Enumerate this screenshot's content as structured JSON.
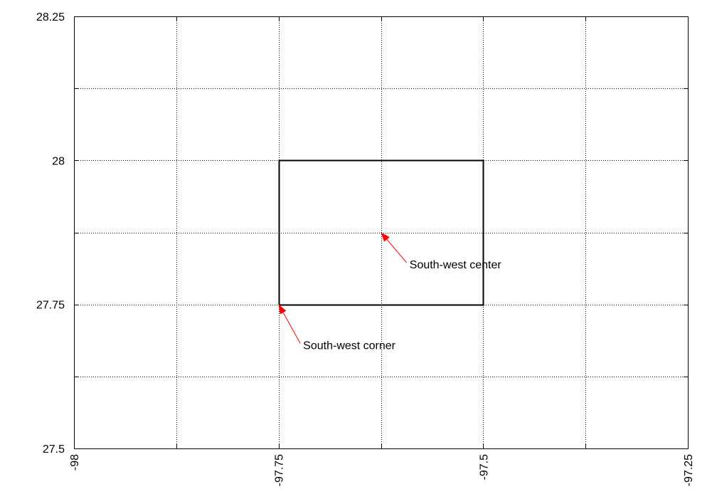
{
  "chart_data": {
    "type": "line",
    "title": "",
    "xlabel": "",
    "ylabel": "",
    "xlim": [
      -98,
      -97.25
    ],
    "ylim": [
      27.5,
      28.25
    ],
    "grid": true,
    "x_ticks": [
      -98,
      -97.875,
      -97.75,
      -97.625,
      -97.5,
      -97.375,
      -97.25
    ],
    "y_ticks": [
      27.5,
      27.625,
      27.75,
      27.875,
      28,
      28.125,
      28.25
    ],
    "x_tick_labels": [
      "-98",
      "-97.75",
      "-97.5",
      "-97.25"
    ],
    "y_tick_labels": [
      "27.5",
      "27.75",
      "28",
      "28.25"
    ],
    "series": [
      {
        "color": "#000000",
        "x": [
          -97.75,
          -97.5,
          -97.5,
          -97.75,
          -97.75
        ],
        "y": [
          27.75,
          27.75,
          28,
          28,
          27.75
        ]
      }
    ],
    "annotations": [
      {
        "text": "South-west  center",
        "point": [
          -97.625,
          27.875
        ],
        "text_pos": [
          -97.59,
          27.82
        ],
        "color": "#ff0000"
      },
      {
        "text": "South-west corner",
        "point": [
          -97.75,
          27.75
        ],
        "text_pos": [
          -97.72,
          27.68
        ],
        "color": "#ff0000"
      }
    ]
  }
}
